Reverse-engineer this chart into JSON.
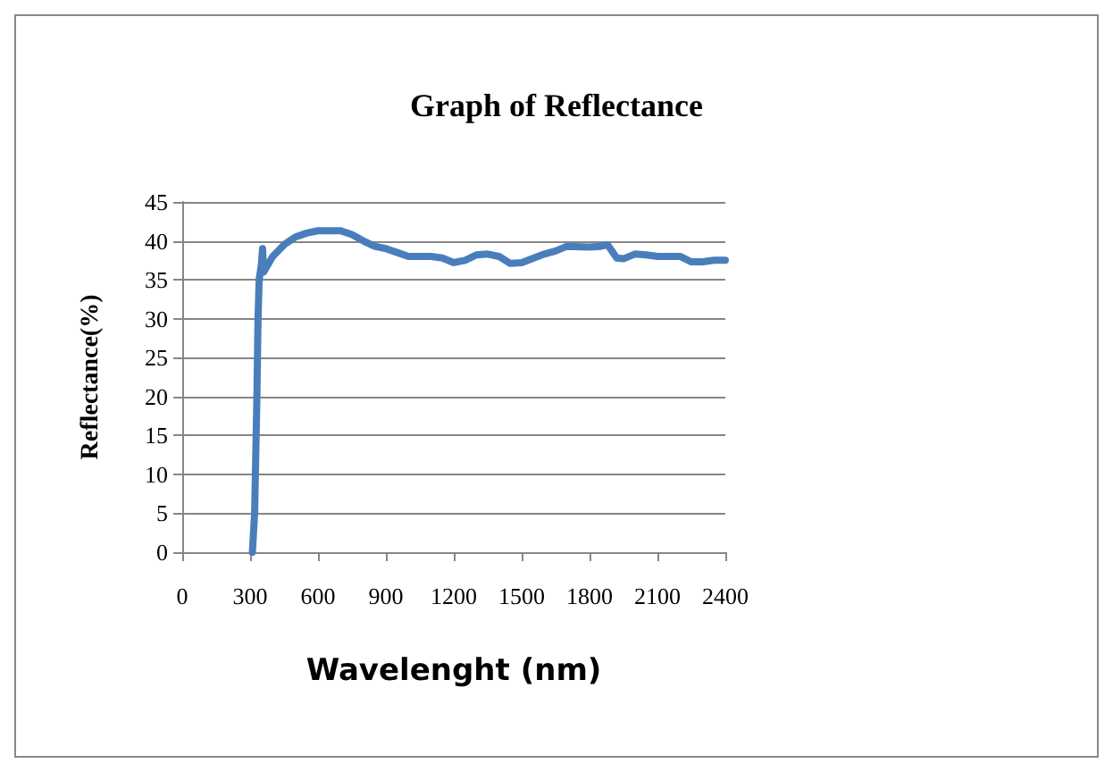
{
  "chart_data": {
    "type": "line",
    "title": "Graph of Reflectance",
    "xlabel": "Wavelenght (nm)",
    "ylabel": "Reflectance(%)",
    "x": [
      310,
      320,
      330,
      335,
      340,
      350,
      355,
      360,
      370,
      400,
      450,
      500,
      550,
      600,
      700,
      750,
      800,
      850,
      900,
      950,
      1000,
      1100,
      1150,
      1200,
      1250,
      1300,
      1350,
      1400,
      1450,
      1500,
      1600,
      1650,
      1700,
      1800,
      1850,
      1880,
      1920,
      1950,
      2000,
      2050,
      2100,
      2200,
      2250,
      2300,
      2350,
      2400
    ],
    "series": [
      {
        "color": "#4a7ebb",
        "values": [
          0,
          5,
          20,
          30,
          35,
          37,
          39,
          36,
          36.5,
          38,
          39.5,
          40.5,
          41,
          41.3,
          41.3,
          40.8,
          40,
          39.3,
          39,
          38.5,
          38,
          38,
          37.8,
          37.2,
          37.5,
          38.2,
          38.3,
          38,
          37.1,
          37.2,
          38.3,
          38.7,
          39.3,
          39.2,
          39.3,
          39.5,
          37.8,
          37.7,
          38.3,
          38.2,
          38,
          38,
          37.3,
          37.3,
          37.5,
          37.5
        ]
      }
    ],
    "xlim": [
      0,
      2400
    ],
    "xticks": [
      0,
      300,
      600,
      900,
      1200,
      1500,
      1800,
      2100,
      2400
    ],
    "ylim": [
      0,
      45
    ],
    "yticks": [
      0,
      5,
      10,
      15,
      20,
      25,
      30,
      35,
      40,
      45
    ],
    "grid": "y",
    "marker": "none",
    "line_style": "solid"
  }
}
